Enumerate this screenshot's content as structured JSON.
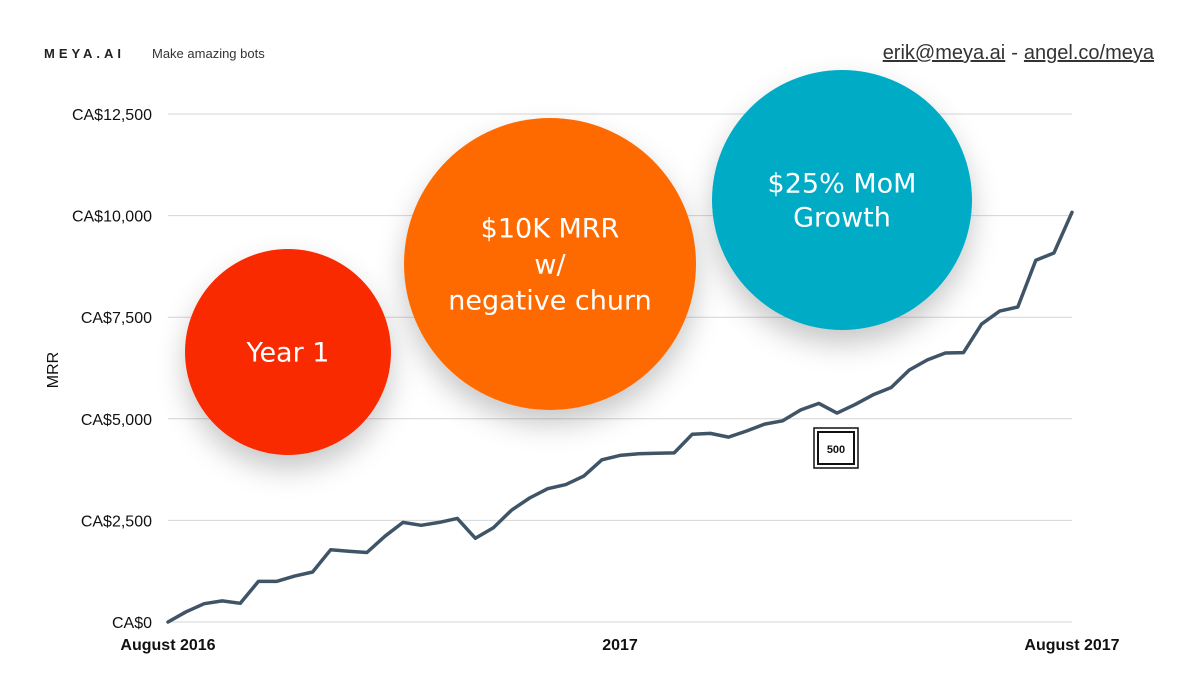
{
  "header": {
    "brand": "MEYA.AI",
    "tagline": "Make amazing bots",
    "email": "erik@meya.ai",
    "separator": "-",
    "website": "angel.co/meya"
  },
  "chart_data": {
    "type": "line",
    "ylabel": "MRR",
    "ylim": [
      0,
      12500
    ],
    "yticks": [
      0,
      2500,
      5000,
      7500,
      10000,
      12500
    ],
    "ytick_labels": [
      "CA$0",
      "CA$2,500",
      "CA$5,000",
      "CA$7,500",
      "CA$10,000",
      "CA$12,500"
    ],
    "xtick_labels": [
      "August 2016",
      "2017",
      "August 2017"
    ],
    "grid": true,
    "line_color": "#3f5567",
    "series": [
      {
        "values": [
          0,
          250,
          450,
          520,
          460,
          1000,
          1000,
          1130,
          1230,
          1780,
          1740,
          1710,
          2110,
          2450,
          2380,
          2450,
          2550,
          2060,
          2320,
          2750,
          3050,
          3280,
          3380,
          3590,
          3990,
          4100,
          4140,
          4150,
          4160,
          4620,
          4640,
          4550,
          4700,
          4870,
          4950,
          5220,
          5380,
          5140,
          5350,
          5590,
          5770,
          6200,
          6450,
          6620,
          6630,
          7330,
          7650,
          7750,
          8900,
          9080,
          10080
        ]
      }
    ],
    "annotations": {
      "badge": "500",
      "bubbles": [
        {
          "lines": [
            "Year 1"
          ],
          "color": "#fa2b05"
        },
        {
          "lines": [
            "$10K MRR",
            "w/",
            "negative churn"
          ],
          "color": "#ff6a00"
        },
        {
          "lines": [
            "$25% MoM",
            "Growth"
          ],
          "color": "#06abc6"
        }
      ]
    }
  }
}
